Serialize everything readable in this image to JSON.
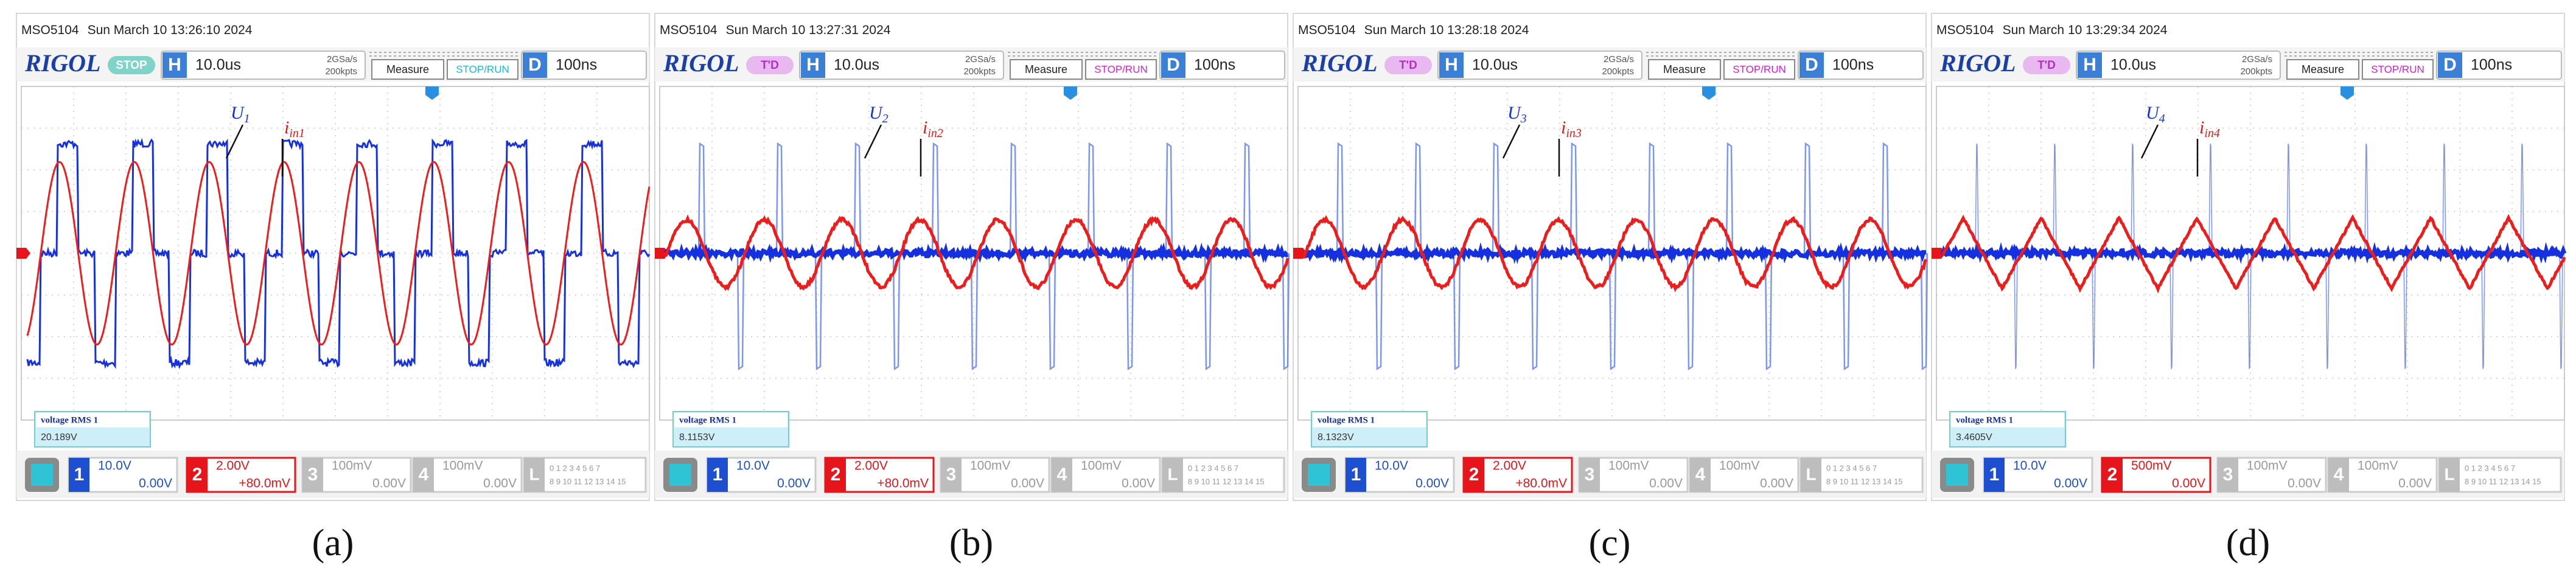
{
  "panels": [
    {
      "model": "MSO5104",
      "timestamp": "Sun March 10 13:26:10 2024",
      "brand": "RIGOL",
      "status": "STOP",
      "h_label": "H",
      "timebase": "10.0us",
      "sample_rate": "2GSa/s",
      "memory": "200kpts",
      "measure": "Measure",
      "run": "STOP/RUN",
      "d_label": "D",
      "delay": "100ns",
      "voltage_label": {
        "main": "U",
        "sub": "1"
      },
      "current_label": {
        "main": "i",
        "sub": "in1"
      },
      "measurement": {
        "name": "voltage RMS 1",
        "value": "20.189V"
      },
      "channels": [
        {
          "number": "1",
          "scale": "10.0V",
          "offset": "0.00V"
        },
        {
          "number": "2",
          "scale": "2.00V",
          "offset": "+80.0mV"
        },
        {
          "number": "3",
          "scale": "100mV",
          "offset": "0.00V"
        },
        {
          "number": "4",
          "scale": "100mV",
          "offset": "0.00V"
        }
      ],
      "logic": {
        "label": "L",
        "row1": "0 1 2 3 4 5 6 7",
        "row2": "8 9 10 11 12 13 14 15"
      },
      "caption": "(a)"
    },
    {
      "model": "MSO5104",
      "timestamp": "Sun March 10 13:27:31 2024",
      "brand": "RIGOL",
      "status": "T'D",
      "h_label": "H",
      "timebase": "10.0us",
      "sample_rate": "2GSa/s",
      "memory": "200kpts",
      "measure": "Measure",
      "run": "STOP/RUN",
      "d_label": "D",
      "delay": "100ns",
      "voltage_label": {
        "main": "U",
        "sub": "2"
      },
      "current_label": {
        "main": "i",
        "sub": "in2"
      },
      "measurement": {
        "name": "voltage RMS 1",
        "value": "8.1153V"
      },
      "channels": [
        {
          "number": "1",
          "scale": "10.0V",
          "offset": "0.00V"
        },
        {
          "number": "2",
          "scale": "2.00V",
          "offset": "+80.0mV"
        },
        {
          "number": "3",
          "scale": "100mV",
          "offset": "0.00V"
        },
        {
          "number": "4",
          "scale": "100mV",
          "offset": "0.00V"
        }
      ],
      "logic": {
        "label": "L",
        "row1": "0 1 2 3 4 5 6 7",
        "row2": "8 9 10 11 12 13 14 15"
      },
      "caption": "(b)"
    },
    {
      "model": "MSO5104",
      "timestamp": "Sun March 10 13:28:18 2024",
      "brand": "RIGOL",
      "status": "T'D",
      "h_label": "H",
      "timebase": "10.0us",
      "sample_rate": "2GSa/s",
      "memory": "200kpts",
      "measure": "Measure",
      "run": "STOP/RUN",
      "d_label": "D",
      "delay": "100ns",
      "voltage_label": {
        "main": "U",
        "sub": "3"
      },
      "current_label": {
        "main": "i",
        "sub": "in3"
      },
      "measurement": {
        "name": "voltage RMS 1",
        "value": "8.1323V"
      },
      "channels": [
        {
          "number": "1",
          "scale": "10.0V",
          "offset": "0.00V"
        },
        {
          "number": "2",
          "scale": "2.00V",
          "offset": "+80.0mV"
        },
        {
          "number": "3",
          "scale": "100mV",
          "offset": "0.00V"
        },
        {
          "number": "4",
          "scale": "100mV",
          "offset": "0.00V"
        }
      ],
      "logic": {
        "label": "L",
        "row1": "0 1 2 3 4 5 6 7",
        "row2": "8 9 10 11 12 13 14 15"
      },
      "caption": "(c)"
    },
    {
      "model": "MSO5104",
      "timestamp": "Sun March 10 13:29:34 2024",
      "brand": "RIGOL",
      "status": "T'D",
      "h_label": "H",
      "timebase": "10.0us",
      "sample_rate": "2GSa/s",
      "memory": "200kpts",
      "measure": "Measure",
      "run": "STOP/RUN",
      "d_label": "D",
      "delay": "100ns",
      "voltage_label": {
        "main": "U",
        "sub": "4"
      },
      "current_label": {
        "main": "i",
        "sub": "in4"
      },
      "measurement": {
        "name": "voltage RMS 1",
        "value": "3.4605V"
      },
      "channels": [
        {
          "number": "1",
          "scale": "10.0V",
          "offset": "0.00V"
        },
        {
          "number": "2",
          "scale": "500mV",
          "offset": "0.00V"
        },
        {
          "number": "3",
          "scale": "100mV",
          "offset": "0.00V"
        },
        {
          "number": "4",
          "scale": "100mV",
          "offset": "0.00V"
        }
      ],
      "logic": {
        "label": "L",
        "row1": "0 1 2 3 4 5 6 7",
        "row2": "8 9 10 11 12 13 14 15"
      },
      "caption": "(d)"
    }
  ]
}
